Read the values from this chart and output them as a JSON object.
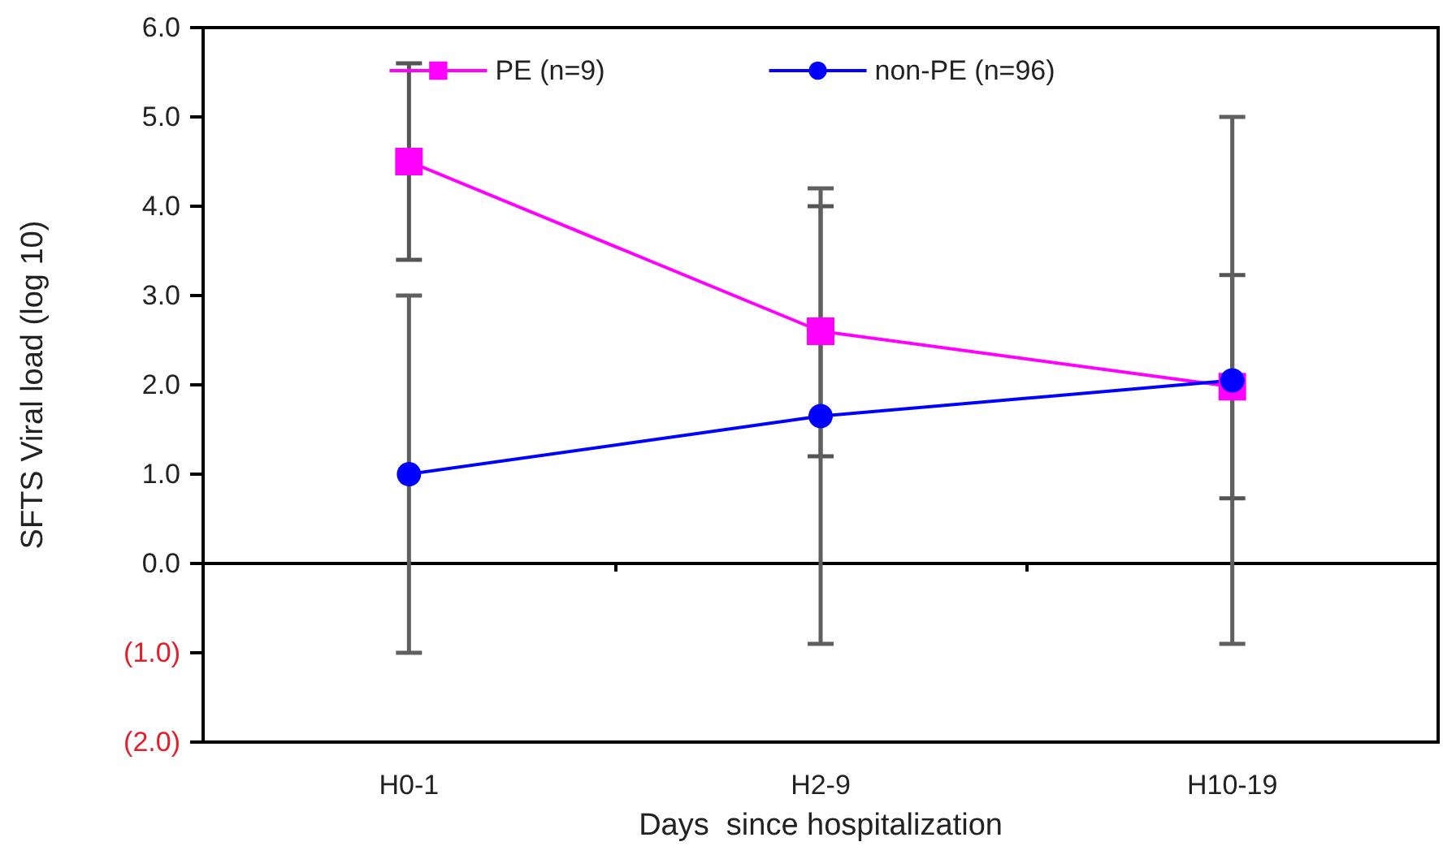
{
  "chart_data": {
    "type": "line",
    "xlabel": "Days  since hospitalization",
    "ylabel": "SFTS Viral load (log 10)",
    "categories": [
      "H0-1",
      "H2-9",
      "H10-19"
    ],
    "series": [
      {
        "name": "PE (n=9)",
        "color": "#ff00ff",
        "marker": "square",
        "values": [
          4.5,
          2.6,
          1.98
        ],
        "errors": [
          1.1,
          1.4,
          1.25
        ]
      },
      {
        "name": "non-PE (n=96)",
        "color": "#0000ff",
        "marker": "circle",
        "values": [
          1.0,
          1.65,
          2.05
        ],
        "errors": [
          2.0,
          2.55,
          2.95
        ]
      }
    ],
    "ylim": [
      -2,
      6
    ],
    "yticks": [
      {
        "value": -2,
        "label": "(2.0)"
      },
      {
        "value": -1,
        "label": "(1.0)"
      },
      {
        "value": 0,
        "label": "0.0"
      },
      {
        "value": 1,
        "label": "1.0"
      },
      {
        "value": 2,
        "label": "2.0"
      },
      {
        "value": 3,
        "label": "3.0"
      },
      {
        "value": 4,
        "label": "4.0"
      },
      {
        "value": 5,
        "label": "5.0"
      },
      {
        "value": 6,
        "label": "6.0"
      }
    ],
    "grid": false,
    "legend": "top",
    "line_style": "solid"
  }
}
